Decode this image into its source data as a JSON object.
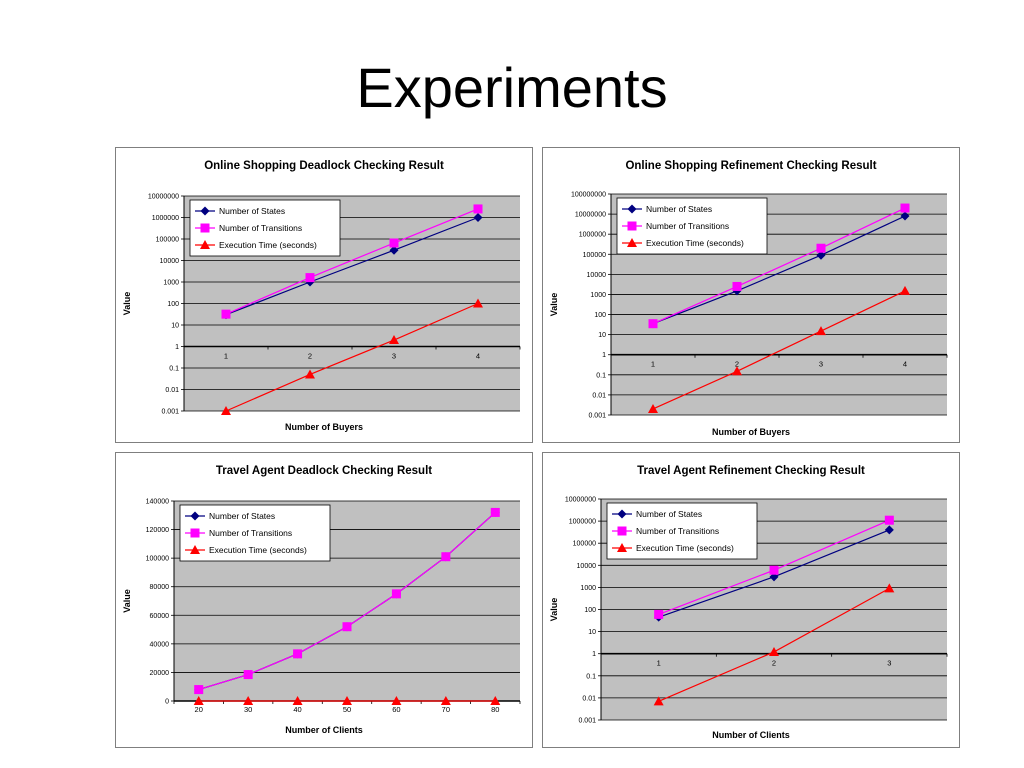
{
  "slide": {
    "title": "Experiments"
  },
  "chart_data": [
    {
      "type": "line",
      "title": "Online Shopping Deadlock Checking Result",
      "xlabel": "Number of Buyers",
      "ylabel": "Value",
      "yscale": "log",
      "ylim": [
        0.001,
        10000000
      ],
      "yticks": [
        "10000000",
        "1000000",
        "100000",
        "10000",
        "1000",
        "100",
        "10",
        "1",
        "0.1",
        "0.01",
        "0.001"
      ],
      "categories": [
        "1",
        "2",
        "3",
        "4"
      ],
      "grid": true,
      "legend": "top-left",
      "series": [
        {
          "name": "Number of States",
          "color": "#000080",
          "marker": "diamond",
          "values": [
            30,
            1000,
            30000,
            1000000
          ]
        },
        {
          "name": "Number of Transitions",
          "color": "#ff00ff",
          "marker": "square",
          "values": [
            32,
            1600,
            65000,
            2500000
          ]
        },
        {
          "name": "Execution Time (seconds)",
          "color": "#ff0000",
          "marker": "triangle",
          "values": [
            0.001,
            0.05,
            2,
            100
          ]
        }
      ]
    },
    {
      "type": "line",
      "title": "Online Shopping Refinement Checking Result",
      "xlabel": "Number of Buyers",
      "ylabel": "Value",
      "yscale": "log",
      "ylim": [
        0.001,
        100000000
      ],
      "yticks": [
        "100000000",
        "10000000",
        "1000000",
        "100000",
        "10000",
        "1000",
        "100",
        "10",
        "1",
        "0.1",
        "0.01",
        "0.001"
      ],
      "categories": [
        "1",
        "2",
        "3",
        "4"
      ],
      "grid": true,
      "legend": "top-left",
      "series": [
        {
          "name": "Number of States",
          "color": "#000080",
          "marker": "diamond",
          "values": [
            35,
            1500,
            90000,
            8000000
          ]
        },
        {
          "name": "Number of Transitions",
          "color": "#ff00ff",
          "marker": "square",
          "values": [
            35,
            2500,
            200000,
            20000000
          ]
        },
        {
          "name": "Execution Time (seconds)",
          "color": "#ff0000",
          "marker": "triangle",
          "values": [
            0.002,
            0.15,
            15,
            1500
          ]
        }
      ]
    },
    {
      "type": "line",
      "title": "Travel Agent Deadlock Checking Result",
      "xlabel": "Number of Clients",
      "ylabel": "Value",
      "yscale": "linear",
      "ylim": [
        0,
        140000
      ],
      "yticks": [
        "140000",
        "120000",
        "100000",
        "80000",
        "60000",
        "40000",
        "20000",
        "0"
      ],
      "categories": [
        "20",
        "30",
        "40",
        "50",
        "60",
        "70",
        "80"
      ],
      "grid": true,
      "legend": "top-left",
      "series": [
        {
          "name": "Number of States",
          "color": "#000080",
          "marker": "diamond",
          "values": [
            8000,
            18500,
            33000,
            52000,
            75000,
            101000,
            132000
          ]
        },
        {
          "name": "Number of Transitions",
          "color": "#ff00ff",
          "marker": "square",
          "values": [
            8000,
            18500,
            33000,
            52000,
            75000,
            101000,
            132000
          ]
        },
        {
          "name": "Execution Time (seconds)",
          "color": "#ff0000",
          "marker": "triangle",
          "values": [
            0,
            0,
            0,
            0,
            0,
            0,
            0
          ]
        }
      ]
    },
    {
      "type": "line",
      "title": "Travel Agent Refinement Checking Result",
      "xlabel": "Number of Clients",
      "ylabel": "Value",
      "yscale": "log",
      "ylim": [
        0.001,
        10000000
      ],
      "yticks": [
        "10000000",
        "1000000",
        "100000",
        "10000",
        "1000",
        "100",
        "10",
        "1",
        "0.1",
        "0.01",
        "0.001"
      ],
      "categories": [
        "1",
        "2",
        "3"
      ],
      "grid": true,
      "legend": "top-left",
      "series": [
        {
          "name": "Number of States",
          "color": "#000080",
          "marker": "diamond",
          "values": [
            45,
            3000,
            400000
          ]
        },
        {
          "name": "Number of Transitions",
          "color": "#ff00ff",
          "marker": "square",
          "values": [
            60,
            6000,
            1100000
          ]
        },
        {
          "name": "Execution Time (seconds)",
          "color": "#ff0000",
          "marker": "triangle",
          "values": [
            0.007,
            1.2,
            900
          ]
        }
      ]
    }
  ]
}
